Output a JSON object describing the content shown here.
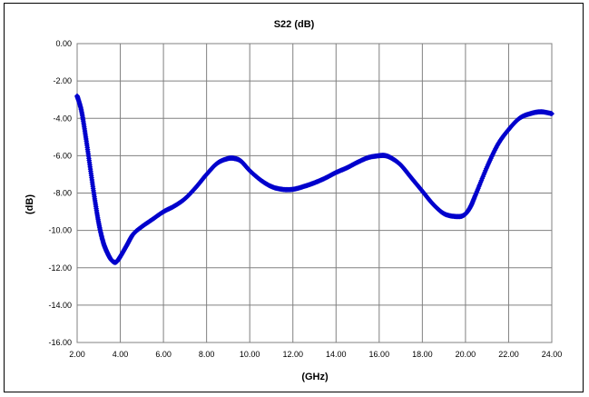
{
  "chart_data": {
    "type": "line",
    "title": "S22 (dB)",
    "xlabel": "(GHz)",
    "ylabel": "(dB)",
    "xlim": [
      2,
      24
    ],
    "ylim": [
      -16,
      0
    ],
    "x_ticks": [
      "2.00",
      "4.00",
      "6.00",
      "8.00",
      "10.00",
      "12.00",
      "14.00",
      "16.00",
      "18.00",
      "20.00",
      "22.00",
      "24.00"
    ],
    "y_ticks": [
      "0.00",
      "-2.00",
      "-4.00",
      "-6.00",
      "-8.00",
      "-10.00",
      "-12.00",
      "-14.00",
      "-16.00"
    ],
    "grid": true,
    "line_color": "#0000cc",
    "series": [
      {
        "x": [
          2.0,
          2.2,
          2.4,
          2.6,
          2.8,
          3.0,
          3.2,
          3.4,
          3.6,
          3.8,
          4.0,
          4.3,
          4.6,
          5.0,
          5.5,
          6.0,
          6.5,
          7.0,
          7.5,
          8.0,
          8.5,
          9.0,
          9.3,
          9.6,
          10.0,
          10.5,
          11.0,
          11.5,
          12.0,
          12.5,
          13.0,
          13.5,
          14.0,
          14.5,
          15.0,
          15.5,
          16.0,
          16.3,
          16.6,
          17.0,
          17.5,
          18.0,
          18.5,
          19.0,
          19.5,
          19.9,
          20.2,
          20.5,
          21.0,
          21.5,
          22.0,
          22.5,
          23.0,
          23.5,
          24.0
        ],
        "y": [
          -2.8,
          -3.6,
          -5.0,
          -6.6,
          -8.2,
          -9.6,
          -10.6,
          -11.2,
          -11.6,
          -11.7,
          -11.4,
          -10.8,
          -10.2,
          -9.8,
          -9.4,
          -9.0,
          -8.7,
          -8.3,
          -7.7,
          -7.0,
          -6.4,
          -6.15,
          -6.15,
          -6.3,
          -6.8,
          -7.3,
          -7.65,
          -7.8,
          -7.8,
          -7.65,
          -7.45,
          -7.2,
          -6.9,
          -6.65,
          -6.35,
          -6.1,
          -6.0,
          -6.0,
          -6.15,
          -6.5,
          -7.2,
          -7.9,
          -8.6,
          -9.1,
          -9.25,
          -9.2,
          -8.8,
          -8.0,
          -6.6,
          -5.4,
          -4.6,
          -4.0,
          -3.75,
          -3.65,
          -3.75
        ]
      }
    ]
  }
}
